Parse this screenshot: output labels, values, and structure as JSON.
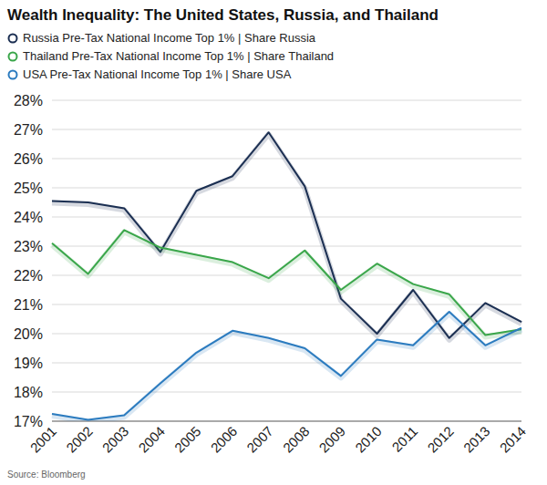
{
  "chart_data": {
    "type": "line",
    "title": "Wealth Inequality: The United States, Russia, and Thailand",
    "source": "Source: Bloomberg",
    "categories": [
      "2001",
      "2002",
      "2003",
      "2004",
      "2005",
      "2006",
      "2007",
      "2008",
      "2009",
      "2010",
      "2011",
      "2012",
      "2013",
      "2014"
    ],
    "series": [
      {
        "name": "Russia Pre-Tax National Income Top 1% | Share Russia",
        "color": "#1b2f52",
        "values": [
          24.55,
          24.5,
          24.3,
          22.8,
          24.9,
          25.4,
          26.9,
          25.05,
          21.2,
          20.0,
          21.5,
          19.85,
          21.05,
          20.4
        ]
      },
      {
        "name": "Thailand Pre-Tax National Income Top 1% | Share Thailand",
        "color": "#3aa64a",
        "values": [
          23.1,
          22.05,
          23.55,
          22.95,
          22.7,
          22.45,
          21.9,
          22.85,
          21.5,
          22.4,
          21.7,
          21.35,
          19.95,
          20.15
        ]
      },
      {
        "name": "USA Pre-Tax National Income Top 1% | Share USA",
        "color": "#2b7bbf",
        "values": [
          17.25,
          17.05,
          17.2,
          18.3,
          19.35,
          20.1,
          19.85,
          19.5,
          18.55,
          19.8,
          19.6,
          20.75,
          19.6,
          20.2
        ]
      }
    ],
    "ylim": [
      17,
      28
    ],
    "yticks": [
      {
        "value": 17,
        "label": "17%"
      },
      {
        "value": 18,
        "label": "18%"
      },
      {
        "value": 19,
        "label": "19%"
      },
      {
        "value": 20,
        "label": "20%"
      },
      {
        "value": 21,
        "label": "21%"
      },
      {
        "value": 22,
        "label": "22%"
      },
      {
        "value": 23,
        "label": "23%"
      },
      {
        "value": 24,
        "label": "24%"
      },
      {
        "value": 25,
        "label": "25%"
      },
      {
        "value": 26,
        "label": "26%"
      },
      {
        "value": 27,
        "label": "27%"
      },
      {
        "value": 28,
        "label": "28%"
      }
    ],
    "grid": true,
    "legend": "top"
  }
}
